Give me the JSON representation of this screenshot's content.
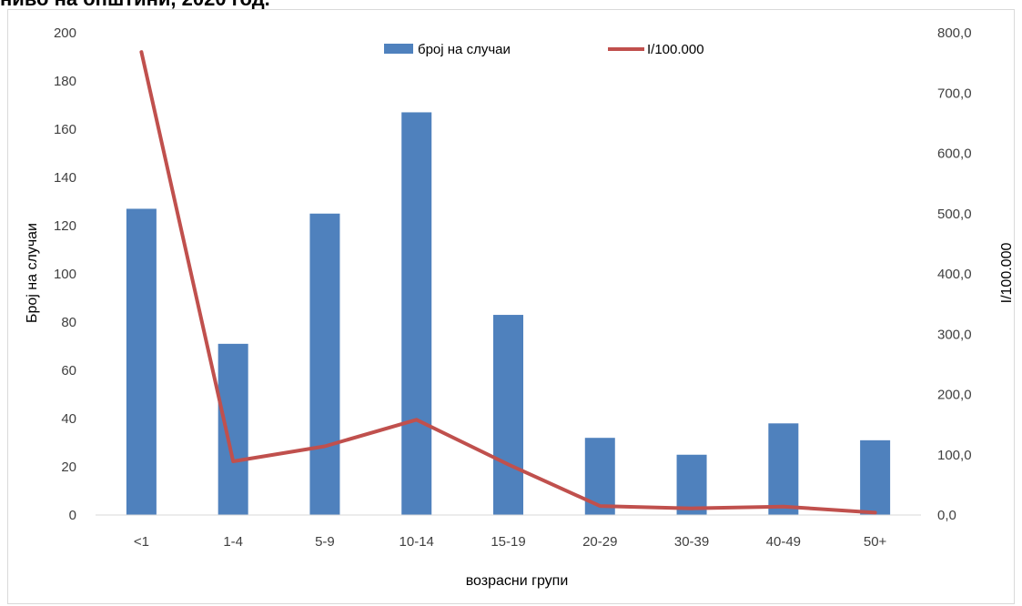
{
  "header": {
    "clipped_title": "ниво на општини, 2020 год."
  },
  "chart_data": {
    "type": "bar",
    "categories": [
      "<1",
      "1-4",
      "5-9",
      "10-14",
      "15-19",
      "20-29",
      "30-39",
      "40-49",
      "50+"
    ],
    "series": [
      {
        "name": "број на случаи",
        "type": "bar",
        "axis": "left",
        "values": [
          127,
          71,
          125,
          167,
          83,
          32,
          25,
          38,
          31
        ]
      },
      {
        "name": "I/100.000",
        "type": "line",
        "axis": "right",
        "values": [
          768.0,
          89.0,
          114.0,
          158.0,
          84.0,
          15.0,
          11.0,
          14.0,
          4.0
        ]
      }
    ],
    "xlabel": "возрасни групи",
    "ylabel": "Број на случаи",
    "y2label": "I/100.000",
    "ylim": [
      0,
      200
    ],
    "y2lim": [
      0,
      800
    ],
    "yticks": [
      "0",
      "20",
      "40",
      "60",
      "80",
      "100",
      "120",
      "140",
      "160",
      "180",
      "200"
    ],
    "y2ticks": [
      "0,0",
      "100,0",
      "200,0",
      "300,0",
      "400,0",
      "500,0",
      "600,0",
      "700,0",
      "800,0"
    ],
    "legend_position": "top",
    "grid": false,
    "colors": {
      "bar": "#4f81bd",
      "line": "#c0504d"
    }
  }
}
